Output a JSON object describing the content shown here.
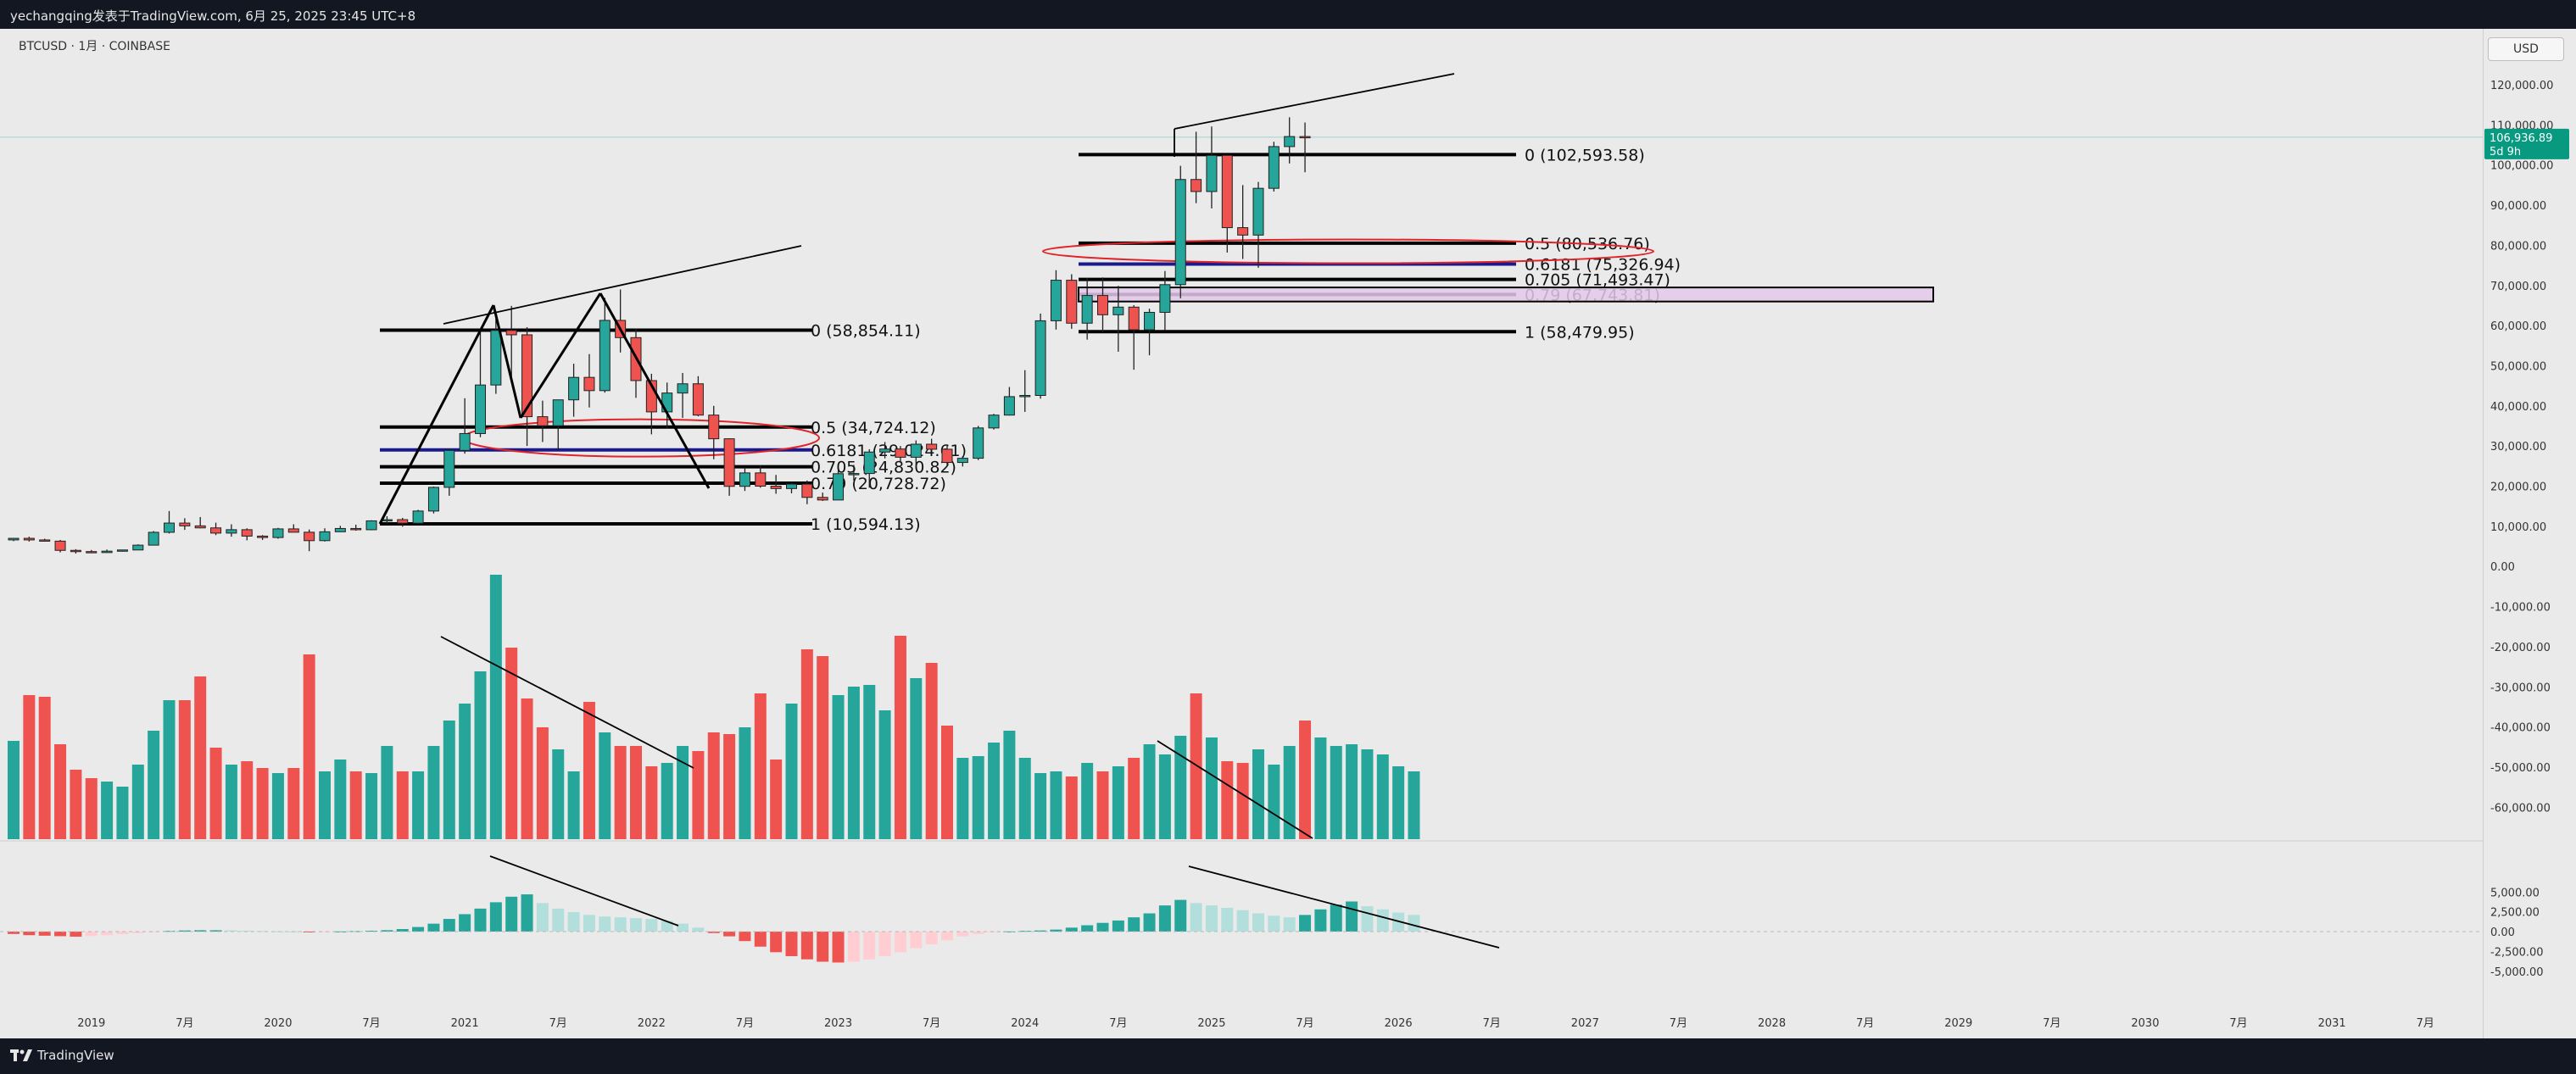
{
  "header": {
    "attribution": "yechangqing发表于TradingView.com, 6月 25, 2025 23:45 UTC+8"
  },
  "symbol": {
    "label": "BTCUSD · 1月 · COINBASE"
  },
  "currency": {
    "label": "USD"
  },
  "footer": {
    "brand": "TradingView"
  },
  "price_tag": {
    "price": "106,936.89",
    "countdown": "5d 9h",
    "color": "#089981"
  },
  "colors": {
    "up": "#26a69a",
    "down": "#ef5350",
    "up_light": "#b2dfdb",
    "down_light": "#ffcdd2",
    "background": "#eaeaea",
    "fib_purple": "#1a1a8c"
  },
  "icons": {
    "logo": "tradingview-logo-icon"
  },
  "chart_data": [
    {
      "type": "candlestick",
      "title": "BTCUSD · 1月 · COINBASE",
      "ylim": [
        -70000,
        130000
      ],
      "y_ticks": [
        "120,000.00",
        "110,000.00",
        "100,000.00",
        "90,000.00",
        "80,000.00",
        "70,000.00",
        "60,000.00",
        "50,000.00",
        "40,000.00",
        "30,000.00",
        "20,000.00",
        "10,000.00",
        "0.00",
        "-10,000.00",
        "-20,000.00",
        "-30,000.00",
        "-40,000.00",
        "-50,000.00",
        "-60,000.00"
      ],
      "x_ticks": [
        "2019",
        "7月",
        "2020",
        "7月",
        "2021",
        "7月",
        "2022",
        "7月",
        "2023",
        "7月",
        "2024",
        "7月",
        "2025",
        "7月",
        "2026",
        "7月",
        "2027",
        "7月",
        "2028",
        "7月",
        "2029",
        "7月",
        "2030",
        "7月",
        "2031",
        "7月"
      ],
      "x_start": "2018-08",
      "candles": [
        [
          6600,
          7000,
          7000,
          6300
        ],
        [
          7000,
          6600,
          7400,
          6200
        ],
        [
          6600,
          6300,
          6900,
          6200
        ],
        [
          6300,
          4000,
          6600,
          3500
        ],
        [
          4000,
          3700,
          4300,
          3200
        ],
        [
          3700,
          3450,
          4100,
          3400
        ],
        [
          3450,
          3800,
          4200,
          3400
        ],
        [
          3800,
          4100,
          4100,
          3700
        ],
        [
          4100,
          5300,
          5500,
          4100
        ],
        [
          5300,
          8500,
          8800,
          5300
        ],
        [
          8500,
          10800,
          13800,
          8200
        ],
        [
          10800,
          10100,
          12000,
          9100
        ],
        [
          10100,
          9600,
          12300,
          9500
        ],
        [
          9600,
          8300,
          10900,
          7800
        ],
        [
          8300,
          9150,
          10500,
          7400
        ],
        [
          9150,
          7550,
          9500,
          6500
        ],
        [
          7550,
          7200,
          7800,
          6600
        ],
        [
          7200,
          9350,
          9600,
          6900
        ],
        [
          9350,
          8520,
          10500,
          8500
        ],
        [
          8520,
          6420,
          9200,
          3800
        ],
        [
          6420,
          8630,
          9500,
          6200
        ],
        [
          8630,
          9450,
          10100,
          8600
        ],
        [
          9450,
          9140,
          10400,
          8900
        ],
        [
          9140,
          11350,
          11500,
          9000
        ],
        [
          11350,
          11650,
          12500,
          10600
        ],
        [
          11650,
          10780,
          12100,
          9900
        ],
        [
          10780,
          13800,
          14100,
          10400
        ],
        [
          13800,
          19700,
          19900,
          13200
        ],
        [
          19700,
          28900,
          29300,
          17600
        ],
        [
          28900,
          33100,
          41900,
          28100
        ],
        [
          33100,
          45200,
          58300,
          32200
        ],
        [
          45200,
          58800,
          61700,
          43000
        ],
        [
          58800,
          57700,
          64900,
          47100
        ],
        [
          57700,
          37300,
          59600,
          30000
        ],
        [
          37300,
          35040,
          41300,
          31000
        ],
        [
          35040,
          41500,
          41300,
          28800
        ],
        [
          41500,
          47100,
          50500,
          37300
        ],
        [
          47100,
          43800,
          52900,
          39600
        ],
        [
          43800,
          61300,
          66900,
          43300
        ],
        [
          61300,
          57000,
          69000,
          53300
        ],
        [
          57000,
          46300,
          59200,
          42000
        ],
        [
          46300,
          38500,
          48000,
          32900
        ],
        [
          38500,
          43200,
          45800,
          34400
        ],
        [
          43200,
          45500,
          48200,
          37000
        ],
        [
          45500,
          37700,
          47400,
          37400
        ],
        [
          37700,
          31800,
          40000,
          26700
        ],
        [
          31800,
          19950,
          31900,
          17600
        ],
        [
          19950,
          23300,
          24700,
          18800
        ],
        [
          23300,
          20000,
          25200,
          19600
        ],
        [
          20000,
          19400,
          22800,
          18100
        ],
        [
          19400,
          20500,
          21000,
          18200
        ],
        [
          20500,
          17200,
          21400,
          15500
        ],
        [
          17200,
          16550,
          18400,
          16300
        ],
        [
          16550,
          23100,
          23900,
          16500
        ],
        [
          23100,
          23150,
          25300,
          21400
        ],
        [
          23150,
          28500,
          29200,
          19600
        ],
        [
          28500,
          29250,
          31000,
          26900
        ],
        [
          29250,
          27200,
          30000,
          25800
        ],
        [
          27200,
          30450,
          31400,
          24800
        ],
        [
          30450,
          29200,
          31800,
          28800
        ],
        [
          29200,
          25900,
          30100,
          25300
        ],
        [
          25900,
          26950,
          27500,
          24900
        ],
        [
          26950,
          34500,
          35000,
          26500
        ],
        [
          34500,
          37700,
          38000,
          34100
        ],
        [
          37700,
          42300,
          44700,
          37600
        ],
        [
          42300,
          42600,
          48900,
          38500
        ],
        [
          42600,
          61200,
          63000,
          41800
        ],
        [
          61200,
          71300,
          73800,
          59000
        ],
        [
          71300,
          60600,
          72800,
          59200
        ],
        [
          60600,
          67500,
          71900,
          56500
        ],
        [
          67500,
          62700,
          72000,
          58400
        ],
        [
          62700,
          64600,
          69900,
          53500
        ],
        [
          64600,
          58950,
          65100,
          49000
        ],
        [
          58950,
          63300,
          64200,
          52600
        ],
        [
          63300,
          70200,
          73600,
          58900
        ],
        [
          70200,
          96400,
          99800,
          66800
        ],
        [
          96400,
          93400,
          108300,
          90500
        ],
        [
          93400,
          102400,
          109600,
          89200
        ],
        [
          102400,
          84400,
          102600,
          78200
        ],
        [
          84400,
          82550,
          95000,
          76600
        ],
        [
          82550,
          94200,
          95800,
          74400
        ],
        [
          94200,
          104600,
          105800,
          93400
        ],
        [
          104600,
          107100,
          111900,
          100400
        ],
        [
          107100,
          106937,
          110600,
          98200
        ]
      ],
      "fib_sets": [
        {
          "levels": [
            {
              "label": "0 (58,854.11)",
              "value": 58854.11,
              "color": "#000000"
            },
            {
              "label": "0.5 (34,724.12)",
              "value": 34724.12,
              "color": "#000000"
            },
            {
              "label": "0.6181 (29,024.61)",
              "value": 29024.61,
              "color": "#1a1a8c"
            },
            {
              "label": "0.705 (24,830.82)",
              "value": 24830.82,
              "color": "#000000"
            },
            {
              "label": "0.79 (20,728.72)",
              "value": 20728.72,
              "color": "#000000"
            },
            {
              "label": "1 (10,594.13)",
              "value": 10594.13,
              "color": "#000000"
            }
          ]
        },
        {
          "levels": [
            {
              "label": "0 (102,593.58)",
              "value": 102593.58,
              "color": "#000000"
            },
            {
              "label": "0.5 (80,536.76)",
              "value": 80536.76,
              "color": "#000000"
            },
            {
              "label": "0.6181 (75,326.94)",
              "value": 75326.94,
              "color": "#1a1a8c"
            },
            {
              "label": "0.705 (71,493.47)",
              "value": 71493.47,
              "color": "#000000"
            },
            {
              "label": "0.79 (67,743.81)",
              "value": 67743.81,
              "color": "#000000"
            },
            {
              "label": "1 (58,479.95)",
              "value": 58479.95,
              "color": "#000000"
            }
          ]
        }
      ]
    },
    {
      "type": "bar",
      "title": "",
      "values": [
        58,
        85,
        84,
        56,
        41,
        36,
        34,
        31,
        44,
        64,
        82,
        82,
        96,
        54,
        44,
        46,
        42,
        39,
        42,
        109,
        40,
        47,
        40,
        39,
        55,
        40,
        40,
        55,
        70,
        80,
        99,
        156,
        113,
        83,
        66,
        53,
        40,
        81,
        63,
        55,
        55,
        43,
        45,
        55,
        52,
        63,
        62,
        66,
        86,
        47,
        80,
        112,
        108,
        85,
        90,
        91,
        76,
        120,
        95,
        104,
        67,
        48,
        49,
        57,
        64,
        48,
        39,
        40,
        37,
        45,
        40,
        43,
        48,
        56,
        50,
        61,
        86,
        60,
        46,
        45,
        53,
        44,
        55,
        70,
        60,
        55,
        56,
        53,
        50,
        43,
        40
      ]
    },
    {
      "type": "bar",
      "title": "",
      "y_ticks": [
        "5,000.00",
        "2,500.00",
        "0.00",
        "-2,500.00",
        "-5,000.00"
      ],
      "ylim": [
        -5400,
        6000
      ],
      "values": [
        -300,
        -450,
        -520,
        -580,
        -640,
        -560,
        -450,
        -330,
        -200,
        -60,
        80,
        140,
        170,
        170,
        150,
        110,
        70,
        40,
        20,
        -30,
        -20,
        20,
        60,
        110,
        180,
        320,
        580,
        1000,
        1600,
        2200,
        2900,
        3700,
        4400,
        4700,
        3600,
        2900,
        2450,
        2100,
        1900,
        1800,
        1700,
        1600,
        1350,
        1000,
        500,
        -180,
        -600,
        -1200,
        -1900,
        -2600,
        -3100,
        -3500,
        -3800,
        -3900,
        -3800,
        -3500,
        -3100,
        -2600,
        -2100,
        -1600,
        -1100,
        -600,
        -300,
        -100,
        20,
        90,
        140,
        250,
        500,
        800,
        1100,
        1400,
        1800,
        2300,
        3300,
        4000,
        3600,
        3300,
        3000,
        2700,
        2300,
        2000,
        1800,
        2100,
        2800,
        3400,
        3800,
        3200,
        2800,
        2400,
        2100
      ]
    }
  ]
}
